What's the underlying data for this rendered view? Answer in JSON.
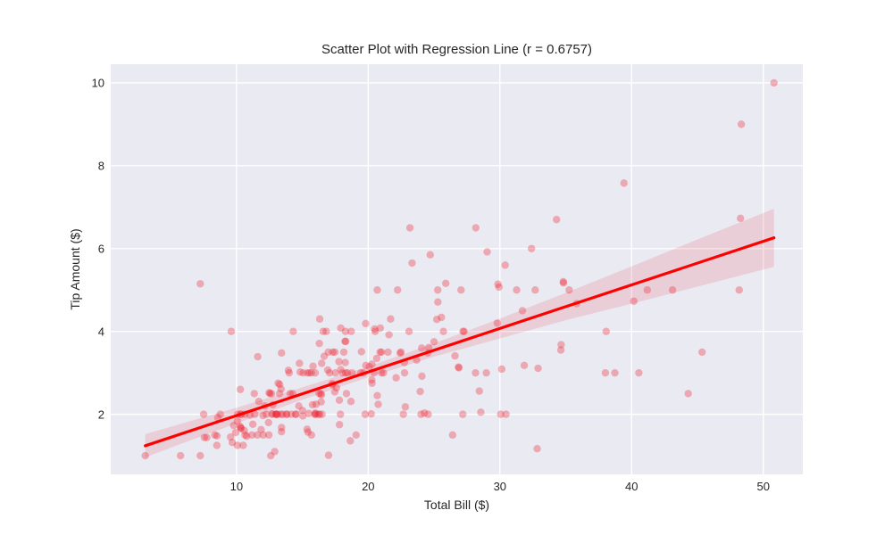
{
  "chart_data": {
    "type": "scatter",
    "title": "Scatter Plot with Regression Line (r = 0.6757)",
    "xlabel": "Total Bill ($)",
    "ylabel": "Tip Amount ($)",
    "correlation_r": "0.6757",
    "xlim": [
      0.45,
      53.0
    ],
    "ylim": [
      0.55,
      10.45
    ],
    "xticks": [
      10,
      20,
      30,
      40,
      50
    ],
    "yticks": [
      2,
      4,
      6,
      8,
      10
    ],
    "grid": true,
    "legend": "none",
    "colors": {
      "plot_background": "#eaeaf2",
      "gridline": "#ffffff",
      "point": "#f01c2c",
      "regression_line": "#ff0000",
      "confidence_band": "#e84a5a",
      "text": "#262626",
      "figure_background": "#ffffff"
    },
    "point_opacity": 0.32,
    "band_opacity": 0.17,
    "regression_line": {
      "x1": 3.07,
      "y1": 1.24,
      "x2": 50.81,
      "y2": 6.26,
      "slope": 0.105,
      "intercept": 0.92
    },
    "confidence_band": {
      "x": [
        3.07,
        6.0,
        10.0,
        15.0,
        19.79,
        25.0,
        30.0,
        35.0,
        40.0,
        45.0,
        50.81
      ],
      "upper": [
        1.52,
        1.79,
        2.16,
        2.65,
        3.13,
        3.71,
        4.31,
        4.93,
        5.57,
        6.22,
        6.96
      ],
      "lower": [
        0.96,
        1.31,
        1.78,
        2.35,
        2.87,
        3.39,
        3.83,
        4.27,
        4.67,
        5.08,
        5.56
      ]
    },
    "points": [
      [
        16.99,
        1.01
      ],
      [
        10.34,
        1.66
      ],
      [
        21.01,
        3.5
      ],
      [
        23.68,
        3.31
      ],
      [
        24.59,
        3.61
      ],
      [
        25.29,
        4.71
      ],
      [
        8.77,
        2.0
      ],
      [
        26.88,
        3.12
      ],
      [
        15.04,
        1.96
      ],
      [
        14.78,
        3.23
      ],
      [
        10.27,
        1.71
      ],
      [
        35.26,
        5.0
      ],
      [
        15.42,
        1.57
      ],
      [
        18.43,
        3.0
      ],
      [
        14.83,
        3.02
      ],
      [
        21.58,
        3.92
      ],
      [
        10.33,
        1.67
      ],
      [
        16.29,
        3.71
      ],
      [
        16.97,
        3.5
      ],
      [
        20.65,
        3.35
      ],
      [
        17.92,
        4.08
      ],
      [
        20.29,
        2.75
      ],
      [
        15.77,
        2.23
      ],
      [
        39.42,
        7.58
      ],
      [
        19.82,
        3.18
      ],
      [
        17.81,
        2.34
      ],
      [
        13.37,
        2.0
      ],
      [
        12.69,
        2.0
      ],
      [
        21.7,
        4.3
      ],
      [
        19.65,
        3.0
      ],
      [
        9.55,
        1.45
      ],
      [
        18.35,
        2.5
      ],
      [
        15.06,
        3.0
      ],
      [
        20.69,
        2.45
      ],
      [
        17.78,
        3.27
      ],
      [
        24.06,
        3.6
      ],
      [
        16.31,
        2.0
      ],
      [
        16.93,
        3.07
      ],
      [
        18.69,
        2.31
      ],
      [
        31.27,
        5.0
      ],
      [
        16.04,
        2.24
      ],
      [
        17.46,
        2.54
      ],
      [
        13.94,
        3.06
      ],
      [
        9.68,
        1.32
      ],
      [
        30.4,
        5.6
      ],
      [
        18.29,
        3.0
      ],
      [
        22.23,
        5.0
      ],
      [
        32.4,
        6.0
      ],
      [
        28.55,
        2.05
      ],
      [
        18.04,
        3.0
      ],
      [
        12.54,
        2.5
      ],
      [
        10.29,
        2.6
      ],
      [
        34.81,
        5.2
      ],
      [
        9.94,
        1.56
      ],
      [
        25.56,
        4.34
      ],
      [
        19.49,
        3.51
      ],
      [
        38.01,
        3.0
      ],
      [
        26.41,
        1.5
      ],
      [
        11.24,
        1.76
      ],
      [
        48.27,
        6.73
      ],
      [
        20.29,
        3.21
      ],
      [
        13.81,
        2.0
      ],
      [
        11.02,
        1.98
      ],
      [
        18.29,
        3.76
      ],
      [
        17.59,
        2.64
      ],
      [
        20.08,
        3.15
      ],
      [
        16.45,
        2.47
      ],
      [
        3.07,
        1.0
      ],
      [
        20.23,
        2.01
      ],
      [
        15.01,
        2.09
      ],
      [
        12.02,
        1.97
      ],
      [
        17.07,
        3.0
      ],
      [
        26.86,
        3.14
      ],
      [
        25.28,
        5.0
      ],
      [
        14.73,
        2.2
      ],
      [
        10.51,
        1.25
      ],
      [
        17.92,
        3.08
      ],
      [
        27.2,
        4.0
      ],
      [
        22.76,
        3.0
      ],
      [
        17.29,
        2.71
      ],
      [
        19.44,
        3.0
      ],
      [
        16.66,
        3.4
      ],
      [
        10.07,
        1.83
      ],
      [
        32.68,
        5.0
      ],
      [
        15.98,
        2.03
      ],
      [
        34.83,
        5.17
      ],
      [
        13.03,
        2.0
      ],
      [
        18.28,
        4.0
      ],
      [
        24.71,
        5.85
      ],
      [
        21.16,
        3.0
      ],
      [
        28.97,
        3.0
      ],
      [
        22.49,
        3.5
      ],
      [
        5.75,
        1.0
      ],
      [
        16.32,
        4.3
      ],
      [
        22.75,
        3.25
      ],
      [
        40.17,
        4.73
      ],
      [
        27.28,
        4.0
      ],
      [
        12.03,
        1.5
      ],
      [
        21.01,
        3.0
      ],
      [
        12.46,
        1.5
      ],
      [
        11.35,
        2.5
      ],
      [
        15.38,
        3.0
      ],
      [
        44.3,
        2.5
      ],
      [
        22.42,
        3.48
      ],
      [
        20.92,
        4.08
      ],
      [
        15.36,
        1.64
      ],
      [
        20.49,
        4.06
      ],
      [
        25.21,
        4.29
      ],
      [
        18.24,
        3.76
      ],
      [
        14.31,
        4.0
      ],
      [
        14.0,
        3.0
      ],
      [
        7.25,
        1.0
      ],
      [
        38.07,
        4.0
      ],
      [
        23.95,
        2.55
      ],
      [
        25.71,
        4.0
      ],
      [
        17.31,
        3.5
      ],
      [
        29.93,
        5.07
      ],
      [
        10.65,
        1.5
      ],
      [
        12.43,
        1.8
      ],
      [
        24.08,
        2.92
      ],
      [
        11.69,
        2.31
      ],
      [
        13.42,
        1.68
      ],
      [
        14.26,
        2.5
      ],
      [
        15.95,
        2.0
      ],
      [
        12.48,
        2.52
      ],
      [
        29.8,
        4.2
      ],
      [
        8.52,
        1.48
      ],
      [
        14.52,
        2.0
      ],
      [
        11.38,
        2.0
      ],
      [
        22.82,
        2.18
      ],
      [
        19.08,
        1.5
      ],
      [
        20.27,
        2.83
      ],
      [
        11.17,
        1.5
      ],
      [
        12.26,
        2.0
      ],
      [
        18.26,
        3.25
      ],
      [
        8.51,
        1.25
      ],
      [
        10.33,
        2.0
      ],
      [
        14.15,
        2.0
      ],
      [
        16.0,
        2.0
      ],
      [
        13.16,
        2.75
      ],
      [
        17.47,
        3.5
      ],
      [
        34.3,
        6.7
      ],
      [
        41.19,
        5.0
      ],
      [
        27.05,
        5.0
      ],
      [
        16.43,
        2.3
      ],
      [
        8.35,
        1.5
      ],
      [
        18.64,
        1.36
      ],
      [
        11.87,
        1.63
      ],
      [
        9.78,
        1.73
      ],
      [
        7.51,
        2.0
      ],
      [
        14.07,
        2.5
      ],
      [
        13.13,
        2.0
      ],
      [
        17.26,
        2.74
      ],
      [
        24.55,
        2.0
      ],
      [
        19.77,
        2.0
      ],
      [
        29.85,
        5.14
      ],
      [
        48.17,
        5.0
      ],
      [
        25.0,
        3.75
      ],
      [
        13.39,
        2.61
      ],
      [
        16.49,
        2.0
      ],
      [
        21.5,
        3.5
      ],
      [
        12.66,
        2.5
      ],
      [
        16.21,
        2.0
      ],
      [
        13.81,
        2.0
      ],
      [
        17.51,
        3.0
      ],
      [
        24.52,
        3.48
      ],
      [
        20.76,
        2.24
      ],
      [
        31.71,
        4.5
      ],
      [
        10.59,
        1.61
      ],
      [
        10.63,
        2.0
      ],
      [
        50.81,
        10.0
      ],
      [
        15.81,
        3.16
      ],
      [
        7.25,
        5.15
      ],
      [
        31.85,
        3.18
      ],
      [
        16.82,
        4.0
      ],
      [
        32.9,
        3.11
      ],
      [
        17.89,
        2.0
      ],
      [
        14.48,
        2.0
      ],
      [
        9.6,
        4.0
      ],
      [
        34.63,
        3.55
      ],
      [
        34.65,
        3.68
      ],
      [
        23.33,
        5.65
      ],
      [
        45.35,
        3.5
      ],
      [
        23.17,
        6.5
      ],
      [
        40.55,
        3.0
      ],
      [
        20.69,
        5.0
      ],
      [
        20.9,
        3.5
      ],
      [
        30.46,
        2.0
      ],
      [
        18.15,
        3.5
      ],
      [
        23.1,
        4.0
      ],
      [
        15.69,
        1.5
      ],
      [
        19.81,
        4.19
      ],
      [
        28.44,
        2.56
      ],
      [
        15.48,
        2.02
      ],
      [
        16.58,
        4.0
      ],
      [
        7.56,
        1.44
      ],
      [
        10.34,
        2.0
      ],
      [
        43.11,
        5.0
      ],
      [
        13.0,
        2.0
      ],
      [
        13.51,
        2.0
      ],
      [
        18.71,
        4.0
      ],
      [
        12.74,
        2.01
      ],
      [
        13.0,
        2.0
      ],
      [
        16.4,
        2.5
      ],
      [
        20.53,
        4.0
      ],
      [
        16.47,
        3.23
      ],
      [
        26.59,
        3.41
      ],
      [
        38.73,
        3.0
      ],
      [
        24.27,
        2.03
      ],
      [
        12.76,
        2.23
      ],
      [
        30.06,
        2.0
      ],
      [
        25.89,
        5.16
      ],
      [
        48.33,
        9.0
      ],
      [
        13.27,
        2.5
      ],
      [
        28.17,
        6.5
      ],
      [
        12.9,
        1.1
      ],
      [
        28.15,
        3.0
      ],
      [
        11.59,
        1.5
      ],
      [
        7.74,
        1.44
      ],
      [
        30.14,
        3.09
      ],
      [
        12.16,
        2.2
      ],
      [
        13.42,
        3.48
      ],
      [
        8.58,
        1.92
      ],
      [
        15.98,
        3.0
      ],
      [
        13.42,
        1.58
      ],
      [
        16.27,
        2.5
      ],
      [
        10.09,
        2.0
      ],
      [
        20.45,
        3.0
      ],
      [
        13.28,
        2.72
      ],
      [
        22.12,
        2.88
      ],
      [
        24.01,
        2.0
      ],
      [
        15.69,
        3.0
      ],
      [
        11.61,
        3.39
      ],
      [
        10.77,
        1.47
      ],
      [
        15.53,
        3.0
      ],
      [
        10.07,
        1.25
      ],
      [
        12.6,
        1.0
      ],
      [
        32.83,
        1.17
      ],
      [
        35.83,
        4.67
      ],
      [
        29.03,
        5.92
      ],
      [
        27.18,
        2.0
      ],
      [
        22.67,
        2.0
      ],
      [
        17.82,
        1.75
      ],
      [
        18.78,
        3.0
      ]
    ]
  }
}
